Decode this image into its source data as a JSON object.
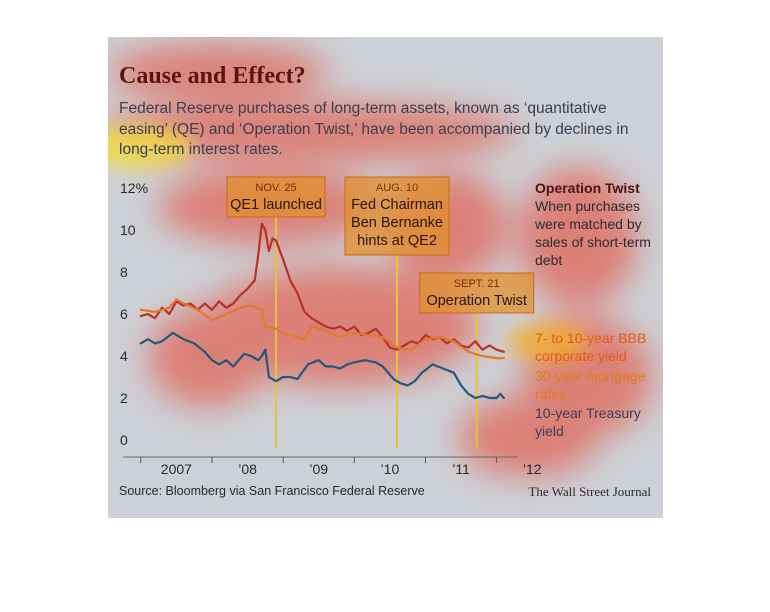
{
  "title": "Cause and Effect?",
  "subtitle": "Federal Reserve purchases of long-term assets, known as ‘quantitative easing’ (QE) and ‘Operation Twist,’ have been accompanied by declines in long-term interest rates.",
  "source": "Source: Bloomberg via San Francisco Federal Reserve",
  "credit": "The Wall Street Journal",
  "sidebar": {
    "heading": "Operation Twist",
    "description": "When purchases were matched by sales of short-term debt"
  },
  "colors": {
    "background": "#cdd0d6",
    "bbb": "#b8302a",
    "mortgage": "#e0792a",
    "treasury": "#1f5a7e",
    "marker": "#e7c23a",
    "title": "#5a1313"
  },
  "chart_data": {
    "type": "line",
    "xlim": [
      2006.75,
      2012.3
    ],
    "ylim": [
      0,
      12
    ],
    "yticks": [
      0,
      2,
      4,
      6,
      8,
      10,
      12
    ],
    "ytick_labels": [
      "0",
      "2",
      "4",
      "6",
      "8",
      "10",
      "12%"
    ],
    "xticks": [
      2007,
      2008,
      2009,
      2010,
      2011,
      2012
    ],
    "xtick_labels": [
      "2007",
      "’08",
      "’09",
      "’10",
      "’11",
      "’12"
    ],
    "grid": false,
    "legend": "right",
    "series": [
      {
        "name": "7- to 10-year BBB corporate yield",
        "color": "#b8302a",
        "x": [
          2007.0,
          2007.1,
          2007.2,
          2007.3,
          2007.4,
          2007.5,
          2007.6,
          2007.7,
          2007.8,
          2007.9,
          2008.0,
          2008.1,
          2008.2,
          2008.3,
          2008.4,
          2008.5,
          2008.6,
          2008.65,
          2008.7,
          2008.75,
          2008.8,
          2008.85,
          2008.9,
          2009.0,
          2009.1,
          2009.2,
          2009.3,
          2009.4,
          2009.5,
          2009.6,
          2009.7,
          2009.8,
          2009.9,
          2010.0,
          2010.1,
          2010.2,
          2010.3,
          2010.4,
          2010.5,
          2010.6,
          2010.7,
          2010.8,
          2010.9,
          2011.0,
          2011.1,
          2011.2,
          2011.3,
          2011.4,
          2011.5,
          2011.6,
          2011.7,
          2011.8,
          2011.9,
          2012.0,
          2012.1
        ],
        "values": [
          5.9,
          6.0,
          5.8,
          6.3,
          6.0,
          6.6,
          6.4,
          6.5,
          6.2,
          6.5,
          6.2,
          6.6,
          6.3,
          6.5,
          6.9,
          7.2,
          7.6,
          8.8,
          10.3,
          10.0,
          9.0,
          9.6,
          9.5,
          8.6,
          7.6,
          7.0,
          6.1,
          5.8,
          5.6,
          5.4,
          5.3,
          5.4,
          5.2,
          5.4,
          5.0,
          5.1,
          5.3,
          4.9,
          4.4,
          4.3,
          4.5,
          4.7,
          4.6,
          5.0,
          4.8,
          4.9,
          4.6,
          4.8,
          4.5,
          4.4,
          4.7,
          4.3,
          4.5,
          4.3,
          4.2
        ]
      },
      {
        "name": "30-year mortgage rates",
        "color": "#e0792a",
        "x": [
          2007.0,
          2007.2,
          2007.4,
          2007.5,
          2007.6,
          2007.8,
          2008.0,
          2008.2,
          2008.4,
          2008.55,
          2008.7,
          2008.75,
          2008.9,
          2009.0,
          2009.1,
          2009.3,
          2009.4,
          2009.6,
          2009.8,
          2010.0,
          2010.2,
          2010.4,
          2010.6,
          2010.8,
          2011.0,
          2011.2,
          2011.4,
          2011.6,
          2011.8,
          2012.0,
          2012.1
        ],
        "values": [
          6.2,
          6.1,
          6.3,
          6.7,
          6.5,
          6.2,
          5.7,
          6.0,
          6.3,
          6.4,
          6.2,
          5.4,
          5.3,
          5.1,
          5.0,
          4.8,
          5.4,
          5.2,
          4.9,
          5.1,
          5.0,
          4.9,
          4.4,
          4.3,
          4.8,
          4.9,
          4.7,
          4.2,
          4.0,
          3.9,
          3.9
        ]
      },
      {
        "name": "10-year Treasury yield",
        "color": "#1f5a7e",
        "x": [
          2007.0,
          2007.1,
          2007.2,
          2007.3,
          2007.45,
          2007.6,
          2007.75,
          2007.9,
          2008.0,
          2008.1,
          2008.2,
          2008.3,
          2008.45,
          2008.55,
          2008.65,
          2008.7,
          2008.75,
          2008.8,
          2008.9,
          2009.0,
          2009.1,
          2009.2,
          2009.35,
          2009.5,
          2009.6,
          2009.7,
          2009.8,
          2009.9,
          2010.0,
          2010.15,
          2010.3,
          2010.4,
          2010.55,
          2010.65,
          2010.75,
          2010.85,
          2010.95,
          2011.1,
          2011.25,
          2011.4,
          2011.5,
          2011.6,
          2011.7,
          2011.8,
          2011.9,
          2012.0,
          2012.05,
          2012.1
        ],
        "values": [
          4.6,
          4.8,
          4.6,
          4.7,
          5.1,
          4.8,
          4.6,
          4.2,
          3.8,
          3.6,
          3.8,
          3.5,
          4.1,
          4.0,
          3.8,
          4.0,
          4.3,
          3.0,
          2.8,
          3.0,
          3.0,
          2.9,
          3.6,
          3.8,
          3.5,
          3.5,
          3.4,
          3.6,
          3.7,
          3.8,
          3.7,
          3.5,
          2.9,
          2.7,
          2.6,
          2.8,
          3.2,
          3.6,
          3.4,
          3.2,
          2.6,
          2.2,
          2.0,
          2.1,
          2.0,
          2.0,
          2.2,
          2.0
        ]
      }
    ],
    "annotations": [
      {
        "x": 2008.9,
        "date": "NOV. 25",
        "text": [
          "QE1 launched"
        ]
      },
      {
        "x": 2010.6,
        "date": "AUG. 10",
        "text": [
          "Fed Chairman",
          "Ben Bernanke",
          "hints at QE2"
        ]
      },
      {
        "x": 2011.72,
        "date": "SEPT. 21",
        "text": [
          "Operation Twist"
        ]
      }
    ]
  }
}
